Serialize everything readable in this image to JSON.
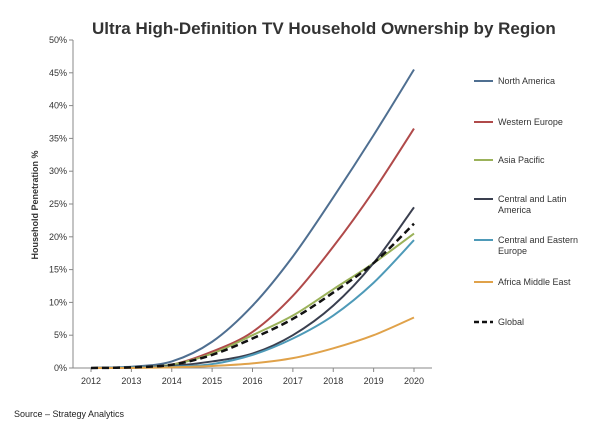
{
  "chart_data": {
    "type": "line",
    "title": "Ultra High-Definition TV Household Ownership by Region",
    "xlabel": "",
    "ylabel": "Household Penetration %",
    "x": [
      "2012",
      "2013",
      "2014",
      "2015",
      "2016",
      "2017",
      "2018",
      "2019",
      "2020"
    ],
    "ylim": [
      0,
      50
    ],
    "yticks": [
      "0%",
      "5%",
      "10%",
      "15%",
      "20%",
      "25%",
      "30%",
      "35%",
      "40%",
      "45%",
      "50%"
    ],
    "grid": false,
    "legend_position": "right",
    "series": [
      {
        "name": "North America",
        "color": "#4F6F91",
        "dash": false,
        "values": [
          0,
          0.2,
          1.0,
          4.0,
          9.5,
          17.0,
          26.0,
          35.5,
          45.5
        ]
      },
      {
        "name": "Western Europe",
        "color": "#B04A4A",
        "dash": false,
        "values": [
          0,
          0.1,
          0.5,
          2.5,
          5.5,
          11.0,
          18.5,
          27.0,
          36.5
        ]
      },
      {
        "name": "Asia Pacific",
        "color": "#9BB25A",
        "dash": false,
        "values": [
          0,
          0.1,
          0.5,
          2.2,
          5.0,
          8.0,
          12.0,
          16.0,
          20.5
        ]
      },
      {
        "name": "Central and Latin America",
        "color": "#3A3F4F",
        "dash": false,
        "values": [
          0,
          0.1,
          0.3,
          1.0,
          2.2,
          5.0,
          9.5,
          16.0,
          24.5
        ]
      },
      {
        "name": "Central and Eastern Europe",
        "color": "#4E9AB8",
        "dash": false,
        "values": [
          0,
          0.1,
          0.2,
          0.6,
          2.0,
          4.5,
          8.0,
          13.0,
          19.5
        ]
      },
      {
        "name": "Africa Middle East",
        "color": "#E0A24A",
        "dash": false,
        "values": [
          0,
          0,
          0.1,
          0.3,
          0.7,
          1.5,
          3.0,
          5.0,
          7.7
        ]
      },
      {
        "name": "Global",
        "color": "#111111",
        "dash": true,
        "values": [
          0,
          0.1,
          0.5,
          2.0,
          4.5,
          7.5,
          11.5,
          16.0,
          22.0
        ]
      }
    ],
    "annotations": [
      "Source – Strategy Analytics"
    ]
  }
}
